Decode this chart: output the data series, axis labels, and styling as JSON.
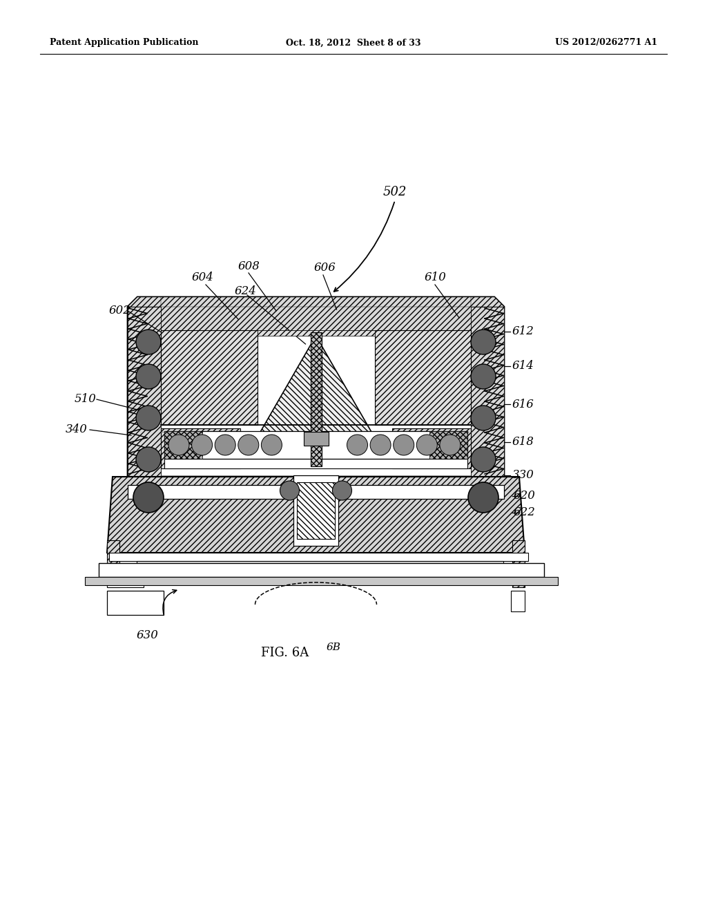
{
  "background_color": "#ffffff",
  "header_left": "Patent Application Publication",
  "header_center": "Oct. 18, 2012  Sheet 8 of 33",
  "header_right": "US 2012/0262771 A1",
  "figure_label": "FIG. 6A",
  "ref_502": "502",
  "ref_602": "602",
  "ref_604": "604",
  "ref_606": "606",
  "ref_608": "608",
  "ref_610": "610",
  "ref_612": "612",
  "ref_614": "614",
  "ref_616": "616",
  "ref_618": "618",
  "ref_620": "620",
  "ref_622": "622",
  "ref_624": "624",
  "ref_510": "510",
  "ref_340": "340",
  "ref_330": "330",
  "ref_630": "630",
  "ref_6B": "6B",
  "DL": 185,
  "DR": 730,
  "DT": 430,
  "DB": 690,
  "BT": 690,
  "BB": 820
}
